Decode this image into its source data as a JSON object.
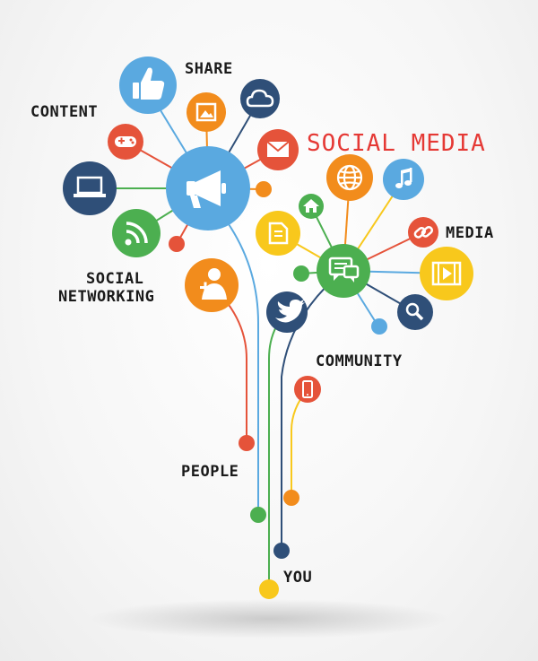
{
  "title": "SOCIAL MEDIA",
  "labels": {
    "share": "SHARE",
    "content": "CONTENT",
    "social_networking_line1": "SOCIAL",
    "social_networking_line2": "NETWORKING",
    "media": "MEDIA",
    "community": "COMMUNITY",
    "people": "PEOPLE",
    "you": "YOU"
  },
  "colors": {
    "blue": "#5aa9e0",
    "green": "#4caf50",
    "orange": "#f28c1c",
    "red": "#e5533a",
    "yellow": "#f8c81c",
    "navy": "#2f4f78",
    "title": "#e53935"
  },
  "icons": [
    "megaphone-icon",
    "thumbs-up-icon",
    "photo-icon",
    "cloud-icon",
    "mail-icon",
    "gamepad-icon",
    "laptop-icon",
    "rss-icon",
    "add-user-icon",
    "chat-icon",
    "globe-icon",
    "music-icon",
    "home-icon",
    "document-icon",
    "link-icon",
    "video-icon",
    "search-icon",
    "twitter-bird-icon",
    "mobile-phone-icon"
  ]
}
